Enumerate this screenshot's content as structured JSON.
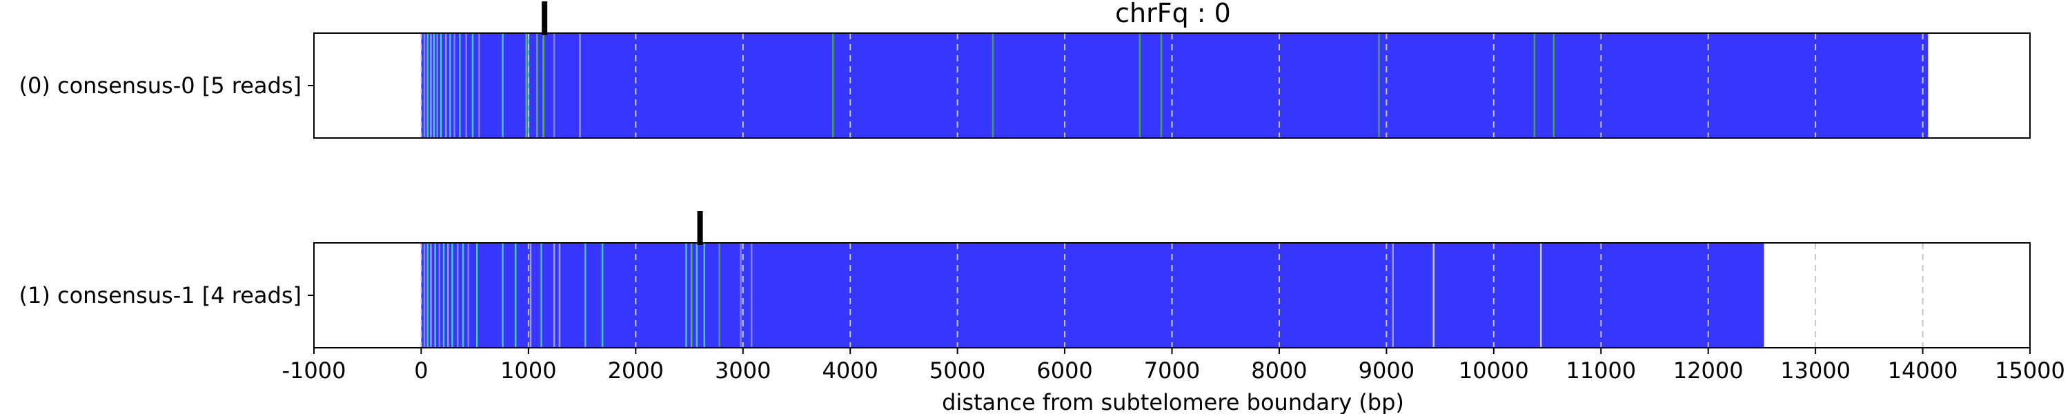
{
  "chart_data": {
    "type": "track",
    "title": "chrFq : 0",
    "xlabel": "distance from subtelomere boundary (bp)",
    "xlim": [
      -1000,
      15000
    ],
    "xticks": [
      -1000,
      0,
      1000,
      2000,
      3000,
      4000,
      5000,
      6000,
      7000,
      8000,
      9000,
      10000,
      11000,
      12000,
      13000,
      14000,
      15000
    ],
    "xtick_labels": [
      "-1000",
      "0",
      "1000",
      "2000",
      "3000",
      "4000",
      "5000",
      "6000",
      "7000",
      "8000",
      "9000",
      "10000",
      "11000",
      "12000",
      "13000",
      "14000",
      "15000"
    ],
    "grid": "vertical dashed at every 1000 bp",
    "colors": {
      "repeat": "#3636ff",
      "grid": "#c8c8c8",
      "marker": "#000000"
    },
    "tracks": [
      {
        "label": "(0) consensus-0 [5 reads]",
        "span": [
          0,
          14050
        ],
        "marker": 1150,
        "bands": [
          {
            "x": 30,
            "color": "#8080ff"
          },
          {
            "x": 60,
            "color": "#46c8b4"
          },
          {
            "x": 90,
            "color": "#9a9ae8"
          },
          {
            "x": 120,
            "color": "#46c8b4"
          },
          {
            "x": 150,
            "color": "#8080ff"
          },
          {
            "x": 185,
            "color": "#46c8b4"
          },
          {
            "x": 230,
            "color": "#9a9ae8"
          },
          {
            "x": 270,
            "color": "#46c8b4"
          },
          {
            "x": 310,
            "color": "#8080ff"
          },
          {
            "x": 360,
            "color": "#46c8b4"
          },
          {
            "x": 420,
            "color": "#8080ff"
          },
          {
            "x": 480,
            "color": "#46c8b4"
          },
          {
            "x": 540,
            "color": "#8080ff"
          },
          {
            "x": 760,
            "color": "#46c8b4"
          },
          {
            "x": 980,
            "color": "#5ab450"
          },
          {
            "x": 1000,
            "color": "#46c8b4"
          },
          {
            "x": 1080,
            "color": "#5ab450"
          },
          {
            "x": 1140,
            "color": "#5ab450"
          },
          {
            "x": 1240,
            "color": "#8080ff"
          },
          {
            "x": 1480,
            "color": "#9a9ae8"
          },
          {
            "x": 3840,
            "color": "#46a050"
          },
          {
            "x": 5330,
            "color": "#46a050"
          },
          {
            "x": 6700,
            "color": "#46a050"
          },
          {
            "x": 6900,
            "color": "#46a050"
          },
          {
            "x": 8930,
            "color": "#46a050"
          },
          {
            "x": 10380,
            "color": "#46a050"
          },
          {
            "x": 10560,
            "color": "#46a050"
          }
        ]
      },
      {
        "label": "(1) consensus-1 [4 reads]",
        "span": [
          0,
          12520
        ],
        "marker": 2600,
        "bands": [
          {
            "x": 30,
            "color": "#8080ff"
          },
          {
            "x": 60,
            "color": "#46c8b4"
          },
          {
            "x": 90,
            "color": "#9a9ae8"
          },
          {
            "x": 130,
            "color": "#46c8b4"
          },
          {
            "x": 170,
            "color": "#8080ff"
          },
          {
            "x": 210,
            "color": "#46c8b4"
          },
          {
            "x": 250,
            "color": "#9a9ae8"
          },
          {
            "x": 290,
            "color": "#46c8b4"
          },
          {
            "x": 340,
            "color": "#8080ff"
          },
          {
            "x": 390,
            "color": "#46c8b4"
          },
          {
            "x": 440,
            "color": "#8080ff"
          },
          {
            "x": 520,
            "color": "#46c8b4"
          },
          {
            "x": 760,
            "color": "#46c8b4"
          },
          {
            "x": 880,
            "color": "#46c8b4"
          },
          {
            "x": 1020,
            "color": "#9a9ae8"
          },
          {
            "x": 1120,
            "color": "#46c8b4"
          },
          {
            "x": 1240,
            "color": "#9a9ae8"
          },
          {
            "x": 1290,
            "color": "#9a9ae8"
          },
          {
            "x": 1530,
            "color": "#46c8b4"
          },
          {
            "x": 1690,
            "color": "#46c8b4"
          },
          {
            "x": 2470,
            "color": "#46c8b4"
          },
          {
            "x": 2520,
            "color": "#5ab450"
          },
          {
            "x": 2570,
            "color": "#46c8b4"
          },
          {
            "x": 2640,
            "color": "#46c8b4"
          },
          {
            "x": 2780,
            "color": "#46a050"
          },
          {
            "x": 2980,
            "color": "#8080ff"
          },
          {
            "x": 3080,
            "color": "#8080ff"
          },
          {
            "x": 9060,
            "color": "#9a9ae8"
          },
          {
            "x": 9440,
            "color": "#c8c8ff"
          },
          {
            "x": 10440,
            "color": "#c8c8ff"
          }
        ]
      }
    ]
  }
}
